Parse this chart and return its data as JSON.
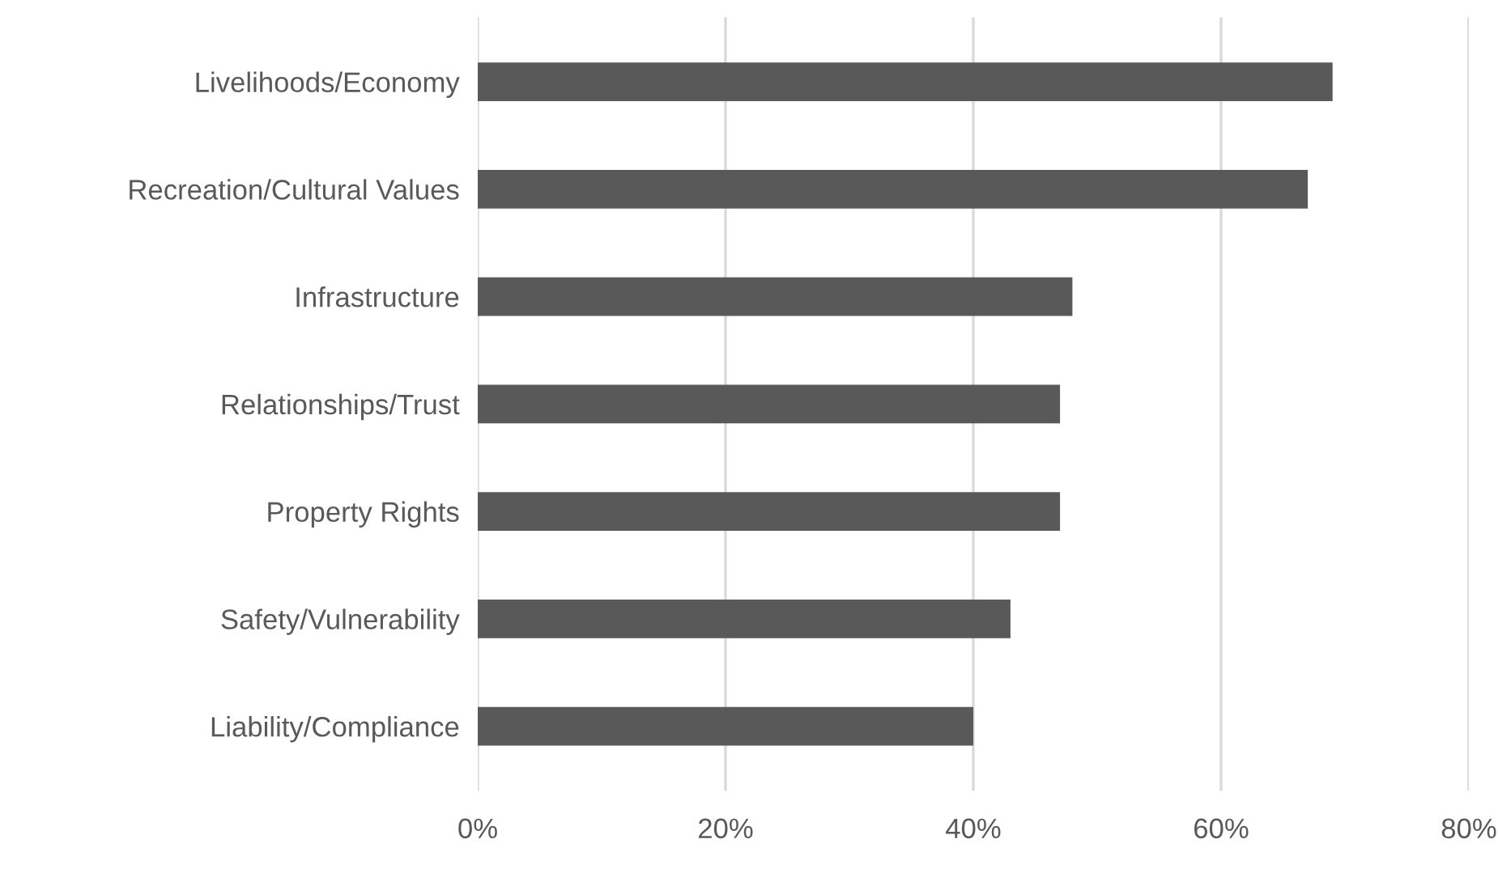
{
  "chart_data": {
    "type": "bar",
    "orientation": "horizontal",
    "categories": [
      "Livelihoods/Economy",
      "Recreation/Cultural Values",
      "Infrastructure",
      "Relationships/Trust",
      "Property Rights",
      "Safety/Vulnerability",
      "Liability/Compliance"
    ],
    "values": [
      69,
      67,
      48,
      47,
      47,
      43,
      40
    ],
    "color": "#595959",
    "xlim": [
      0,
      80
    ],
    "xticks": [
      {
        "value": 0,
        "label": "0%"
      },
      {
        "value": 20,
        "label": "20%"
      },
      {
        "value": 40,
        "label": "40%"
      },
      {
        "value": 60,
        "label": "60%"
      },
      {
        "value": 80,
        "label": "80%"
      }
    ],
    "grid": "x",
    "legend": false
  }
}
